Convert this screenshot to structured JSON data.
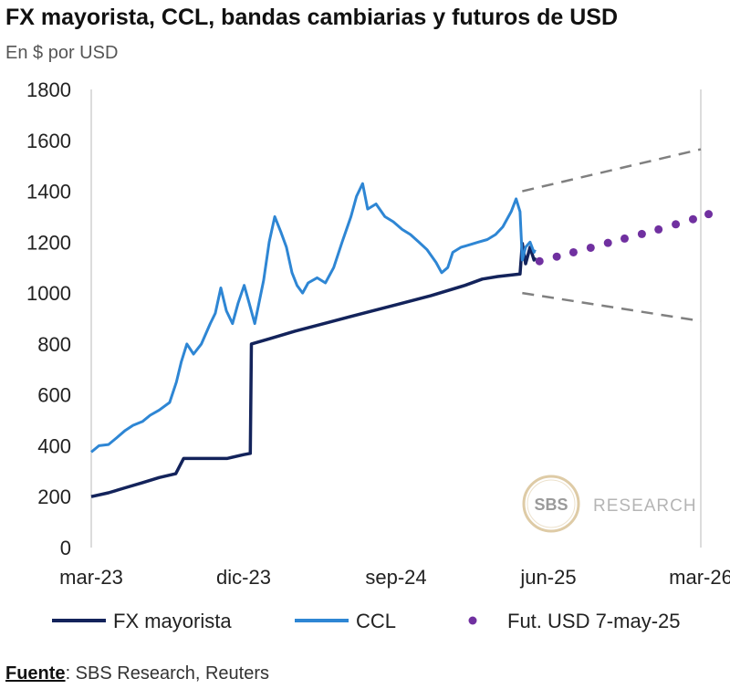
{
  "chart_data": {
    "type": "line",
    "title": "FX mayorista, CCL, bandas cambiarias y futuros de USD",
    "subtitle": "En $ por USD",
    "x_ticks": [
      "mar-23",
      "dic-23",
      "sep-24",
      "jun-25",
      "mar-26"
    ],
    "x_range": [
      "2023-03",
      "2026-03"
    ],
    "ylim": [
      0,
      1800
    ],
    "y_ticks": [
      0,
      200,
      400,
      600,
      800,
      1000,
      1200,
      1400,
      1600,
      1800
    ],
    "legend_position": "bottom",
    "series": [
      {
        "name": "FX mayorista",
        "style": "line",
        "color": "#13235b",
        "points": [
          [
            "2023-03-01",
            200
          ],
          [
            "2023-04-01",
            215
          ],
          [
            "2023-05-01",
            235
          ],
          [
            "2023-06-01",
            255
          ],
          [
            "2023-07-01",
            275
          ],
          [
            "2023-07-31",
            290
          ],
          [
            "2023-08-14",
            350
          ],
          [
            "2023-09-15",
            350
          ],
          [
            "2023-10-31",
            350
          ],
          [
            "2023-11-30",
            365
          ],
          [
            "2023-12-12",
            370
          ],
          [
            "2023-12-14",
            800
          ],
          [
            "2024-01-15",
            820
          ],
          [
            "2024-03-01",
            850
          ],
          [
            "2024-05-01",
            885
          ],
          [
            "2024-07-01",
            920
          ],
          [
            "2024-09-01",
            955
          ],
          [
            "2024-11-01",
            990
          ],
          [
            "2025-01-01",
            1030
          ],
          [
            "2025-02-01",
            1055
          ],
          [
            "2025-03-01",
            1065
          ],
          [
            "2025-04-10",
            1075
          ],
          [
            "2025-04-14",
            1195
          ],
          [
            "2025-04-20",
            1115
          ],
          [
            "2025-04-28",
            1180
          ],
          [
            "2025-05-05",
            1130
          ],
          [
            "2025-05-07",
            1140
          ]
        ]
      },
      {
        "name": "CCL",
        "style": "line",
        "color": "#2e86d4",
        "points": [
          [
            "2023-03-01",
            375
          ],
          [
            "2023-03-15",
            400
          ],
          [
            "2023-04-01",
            405
          ],
          [
            "2023-04-15",
            430
          ],
          [
            "2023-05-01",
            460
          ],
          [
            "2023-05-15",
            480
          ],
          [
            "2023-06-01",
            495
          ],
          [
            "2023-06-15",
            520
          ],
          [
            "2023-07-01",
            540
          ],
          [
            "2023-07-20",
            570
          ],
          [
            "2023-08-01",
            650
          ],
          [
            "2023-08-10",
            730
          ],
          [
            "2023-08-20",
            800
          ],
          [
            "2023-09-01",
            760
          ],
          [
            "2023-09-15",
            800
          ],
          [
            "2023-10-01",
            880
          ],
          [
            "2023-10-10",
            920
          ],
          [
            "2023-10-20",
            1020
          ],
          [
            "2023-10-30",
            930
          ],
          [
            "2023-11-10",
            880
          ],
          [
            "2023-11-20",
            960
          ],
          [
            "2023-12-01",
            1030
          ],
          [
            "2023-12-10",
            960
          ],
          [
            "2023-12-20",
            880
          ],
          [
            "2024-01-05",
            1050
          ],
          [
            "2024-01-15",
            1200
          ],
          [
            "2024-01-25",
            1300
          ],
          [
            "2024-02-05",
            1240
          ],
          [
            "2024-02-15",
            1180
          ],
          [
            "2024-02-25",
            1080
          ],
          [
            "2024-03-05",
            1030
          ],
          [
            "2024-03-15",
            1000
          ],
          [
            "2024-03-25",
            1040
          ],
          [
            "2024-04-10",
            1060
          ],
          [
            "2024-04-25",
            1040
          ],
          [
            "2024-05-10",
            1100
          ],
          [
            "2024-05-25",
            1200
          ],
          [
            "2024-06-10",
            1300
          ],
          [
            "2024-06-20",
            1380
          ],
          [
            "2024-07-01",
            1430
          ],
          [
            "2024-07-10",
            1330
          ],
          [
            "2024-07-25",
            1350
          ],
          [
            "2024-08-10",
            1300
          ],
          [
            "2024-08-25",
            1280
          ],
          [
            "2024-09-10",
            1250
          ],
          [
            "2024-09-25",
            1230
          ],
          [
            "2024-10-10",
            1200
          ],
          [
            "2024-10-25",
            1170
          ],
          [
            "2024-11-10",
            1120
          ],
          [
            "2024-11-20",
            1080
          ],
          [
            "2024-12-01",
            1100
          ],
          [
            "2024-12-10",
            1160
          ],
          [
            "2024-12-25",
            1180
          ],
          [
            "2025-01-10",
            1190
          ],
          [
            "2025-01-25",
            1200
          ],
          [
            "2025-02-10",
            1210
          ],
          [
            "2025-02-25",
            1230
          ],
          [
            "2025-03-10",
            1260
          ],
          [
            "2025-03-25",
            1320
          ],
          [
            "2025-04-03",
            1370
          ],
          [
            "2025-04-10",
            1320
          ],
          [
            "2025-04-14",
            1130
          ],
          [
            "2025-04-20",
            1180
          ],
          [
            "2025-04-28",
            1200
          ],
          [
            "2025-05-05",
            1160
          ],
          [
            "2025-05-07",
            1170
          ]
        ]
      },
      {
        "name": "Fut. USD 7-may-25",
        "style": "dots",
        "color": "#7030a0",
        "points": [
          [
            "2025-05-15",
            1125
          ],
          [
            "2025-06-15",
            1143
          ],
          [
            "2025-07-15",
            1160
          ],
          [
            "2025-08-15",
            1178
          ],
          [
            "2025-09-15",
            1197
          ],
          [
            "2025-10-15",
            1214
          ],
          [
            "2025-11-15",
            1232
          ],
          [
            "2025-12-15",
            1250
          ],
          [
            "2026-01-15",
            1270
          ],
          [
            "2026-02-15",
            1290
          ],
          [
            "2026-03-15",
            1310
          ]
        ]
      }
    ],
    "bands": {
      "style": "dashed",
      "color": "#808080",
      "upper": [
        [
          "2025-04-14",
          1400
        ],
        [
          "2026-03-01",
          1565
        ]
      ],
      "lower": [
        [
          "2025-04-14",
          1000
        ],
        [
          "2026-03-01",
          890
        ]
      ]
    },
    "legend": [
      "FX mayorista",
      "CCL",
      "Fut. USD 7-may-25"
    ]
  },
  "logo": {
    "mark": "SBS",
    "text": "RESEARCH",
    "color": "#c8a86a"
  },
  "source": {
    "label": "Fuente",
    "text": ": SBS Research, Reuters"
  }
}
